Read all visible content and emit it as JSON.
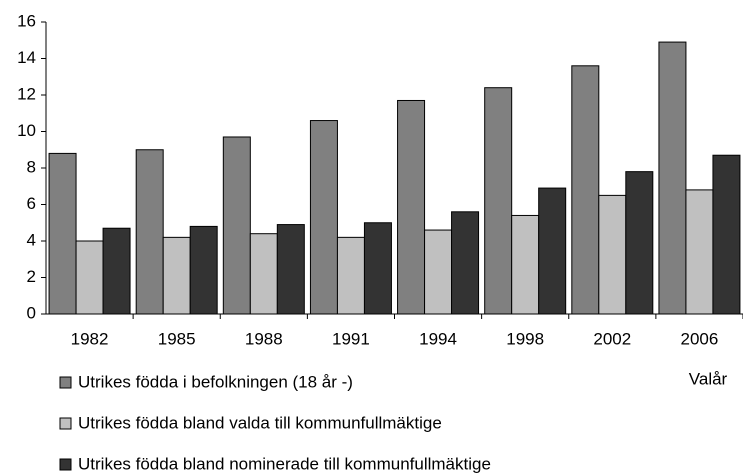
{
  "chart_data": {
    "type": "bar",
    "x_label": "Valår",
    "categories": [
      "1982",
      "1985",
      "1988",
      "1991",
      "1994",
      "1998",
      "2002",
      "2006"
    ],
    "series": [
      {
        "name": "Utrikes födda i befolkningen (18 år -)",
        "color": "#808080",
        "values": [
          8.8,
          9.0,
          9.7,
          10.6,
          11.7,
          12.4,
          13.6,
          14.9
        ]
      },
      {
        "name": "Utrikes födda bland valda till kommunfullmäktige",
        "color": "#c0c0c0",
        "values": [
          4.0,
          4.2,
          4.4,
          4.2,
          4.6,
          5.4,
          6.5,
          6.8
        ]
      },
      {
        "name": "Utrikes födda bland nominerade till kommunfullmäktige",
        "color": "#333333",
        "values": [
          4.7,
          4.8,
          4.9,
          5.0,
          5.6,
          6.9,
          7.8,
          8.7
        ]
      }
    ],
    "ylim": [
      0,
      16
    ],
    "yticks": [
      0,
      2,
      4,
      6,
      8,
      10,
      12,
      14,
      16
    ],
    "grid": false
  }
}
